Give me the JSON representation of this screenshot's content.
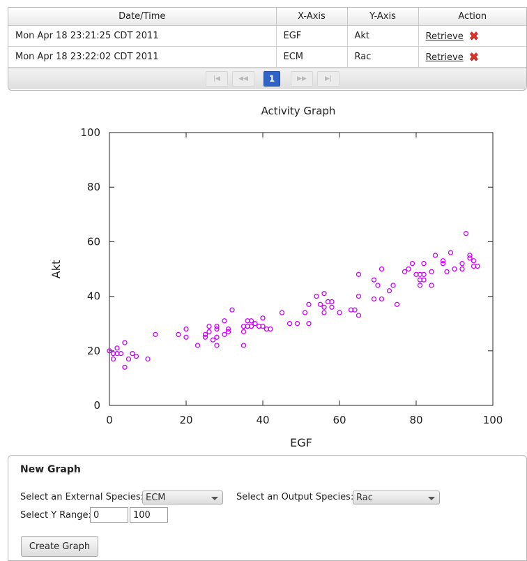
{
  "history": {
    "headers": [
      "Date/Time",
      "X-Axis",
      "Y-Axis",
      "Action"
    ],
    "rows": [
      {
        "datetime": "Mon Apr 18 23:21:25 CDT 2011",
        "x_axis": "EGF",
        "y_axis": "Akt",
        "action_label": "Retrieve",
        "delete_icon": "red-x-icon"
      },
      {
        "datetime": "Mon Apr 18 23:22:02 CDT 2011",
        "x_axis": "ECM",
        "y_axis": "Rac",
        "action_label": "Retrieve",
        "delete_icon": "red-x-icon"
      }
    ],
    "pager": {
      "current_page": "1",
      "first": "|◀",
      "prev": "◀◀",
      "next": "▶▶",
      "last": "▶|"
    }
  },
  "chart_data": {
    "type": "scatter",
    "title": "Activity Graph",
    "xlabel": "EGF",
    "ylabel": "Akt",
    "xlim": [
      0,
      100
    ],
    "ylim": [
      0,
      100
    ],
    "xticks": [
      0,
      20,
      40,
      60,
      80,
      100
    ],
    "yticks": [
      0,
      20,
      40,
      60,
      80,
      100
    ],
    "color": "#cc00ff",
    "marker": "hollow-circle",
    "points": [
      [
        0,
        20
      ],
      [
        1,
        17
      ],
      [
        1,
        19
      ],
      [
        2,
        21
      ],
      [
        2,
        19
      ],
      [
        3,
        19
      ],
      [
        4,
        23
      ],
      [
        4,
        14
      ],
      [
        5,
        17
      ],
      [
        6,
        19
      ],
      [
        7,
        18
      ],
      [
        10,
        17
      ],
      [
        12,
        26
      ],
      [
        18,
        26
      ],
      [
        20,
        28
      ],
      [
        20,
        25
      ],
      [
        23,
        22
      ],
      [
        25,
        26
      ],
      [
        25,
        25
      ],
      [
        26,
        29
      ],
      [
        26,
        27
      ],
      [
        27,
        24
      ],
      [
        28,
        28
      ],
      [
        28,
        29
      ],
      [
        28,
        22
      ],
      [
        28,
        25
      ],
      [
        30,
        31
      ],
      [
        30,
        26
      ],
      [
        31,
        27
      ],
      [
        31,
        28
      ],
      [
        32,
        35
      ],
      [
        35,
        22
      ],
      [
        35,
        29
      ],
      [
        35,
        27
      ],
      [
        36,
        29
      ],
      [
        36,
        31
      ],
      [
        37,
        31
      ],
      [
        37,
        29
      ],
      [
        38,
        30
      ],
      [
        39,
        29
      ],
      [
        40,
        29
      ],
      [
        40,
        32
      ],
      [
        41,
        28
      ],
      [
        42,
        28
      ],
      [
        45,
        34
      ],
      [
        47,
        30
      ],
      [
        49,
        30
      ],
      [
        51,
        34
      ],
      [
        52,
        30
      ],
      [
        52,
        37
      ],
      [
        54,
        40
      ],
      [
        55,
        37
      ],
      [
        56,
        41
      ],
      [
        56,
        36
      ],
      [
        56,
        34
      ],
      [
        57,
        38
      ],
      [
        58,
        38
      ],
      [
        58,
        36
      ],
      [
        60,
        34
      ],
      [
        63,
        35
      ],
      [
        64,
        35
      ],
      [
        65,
        48
      ],
      [
        65,
        40
      ],
      [
        65,
        33
      ],
      [
        69,
        46
      ],
      [
        69,
        39
      ],
      [
        70,
        44
      ],
      [
        71,
        50
      ],
      [
        71,
        39
      ],
      [
        73,
        42
      ],
      [
        74,
        44
      ],
      [
        75,
        37
      ],
      [
        77,
        49
      ],
      [
        78,
        50
      ],
      [
        79,
        52
      ],
      [
        80,
        48
      ],
      [
        81,
        46
      ],
      [
        81,
        44
      ],
      [
        81,
        48
      ],
      [
        82,
        46
      ],
      [
        82,
        48
      ],
      [
        82,
        52
      ],
      [
        84,
        44
      ],
      [
        84,
        49
      ],
      [
        85,
        55
      ],
      [
        87,
        53
      ],
      [
        87,
        52
      ],
      [
        88,
        49
      ],
      [
        89,
        56
      ],
      [
        90,
        50
      ],
      [
        92,
        50
      ],
      [
        92,
        52
      ],
      [
        93,
        63
      ],
      [
        94,
        55
      ],
      [
        94,
        54
      ],
      [
        95,
        53
      ],
      [
        95,
        51
      ],
      [
        96,
        51
      ]
    ]
  },
  "new_graph": {
    "title": "New Graph",
    "external_label": "Select an External Species:",
    "external_value": "ECM",
    "output_label": "Select an Output Species:",
    "output_value": "Rac",
    "range_label": "Select Y Range:",
    "range_min": "0",
    "range_max": "100",
    "button_label": "Create Graph"
  }
}
